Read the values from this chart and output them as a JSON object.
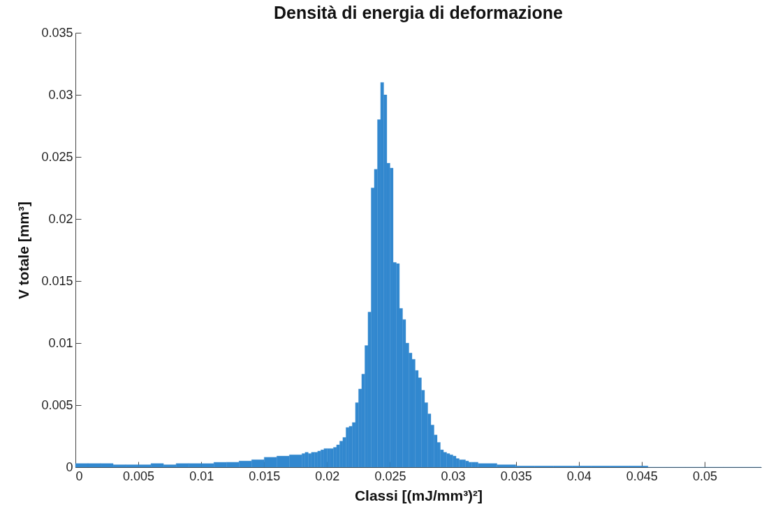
{
  "chart_data": {
    "type": "histogram",
    "title": "Densità di energia di deformazione",
    "xlabel": "Classi [(mJ/mm³)²]",
    "ylabel": "V totale [mm³]",
    "color": "#3288cf",
    "bins": [
      0,
      0.001,
      0.002,
      0.003,
      0.004,
      0.005,
      0.006,
      0.007,
      0.008,
      0.009,
      0.01,
      0.011,
      0.012,
      0.013,
      0.014,
      0.015,
      0.016,
      0.017,
      0.018,
      0.01825,
      0.0185,
      0.01875,
      0.019,
      0.01925,
      0.0195,
      0.01975,
      0.02,
      0.02025,
      0.0205,
      0.02075,
      0.021,
      0.02125,
      0.0215,
      0.02175,
      0.022,
      0.02225,
      0.0225,
      0.02275,
      0.023,
      0.02325,
      0.0235,
      0.02375,
      0.024,
      0.02425,
      0.0245,
      0.02475,
      0.025,
      0.02525,
      0.0255,
      0.02575,
      0.026,
      0.02625,
      0.0265,
      0.02675,
      0.027,
      0.02725,
      0.0275,
      0.02775,
      0.028,
      0.02825,
      0.0285,
      0.02875,
      0.029,
      0.02925,
      0.0295,
      0.02975,
      0.03,
      0.03025,
      0.0305,
      0.03075,
      0.031,
      0.03125,
      0.0315,
      0.03175,
      0.032,
      0.0335,
      0.035,
      0.0365,
      0.038,
      0.0395,
      0.041,
      0.0425,
      0.044,
      0.0455,
      0.047,
      0.0485,
      0.05,
      0.0515,
      0.053,
      0.0545
    ],
    "values": [
      0.0003,
      0.0003,
      0.0003,
      0.0002,
      0.0002,
      0.0002,
      0.0003,
      0.0002,
      0.0003,
      0.0003,
      0.0003,
      0.0004,
      0.0004,
      0.0005,
      0.0006,
      0.0008,
      0.0009,
      0.001,
      0.0011,
      0.0012,
      0.0011,
      0.0012,
      0.0012,
      0.0013,
      0.0014,
      0.0015,
      0.0015,
      0.0015,
      0.0016,
      0.0018,
      0.0021,
      0.0024,
      0.0032,
      0.0033,
      0.0036,
      0.0052,
      0.0063,
      0.0075,
      0.0098,
      0.0125,
      0.0225,
      0.024,
      0.028,
      0.031,
      0.03,
      0.0245,
      0.0241,
      0.0165,
      0.0164,
      0.0128,
      0.0119,
      0.01,
      0.0092,
      0.0087,
      0.0078,
      0.0072,
      0.0062,
      0.0052,
      0.0043,
      0.0034,
      0.0026,
      0.002,
      0.0014,
      0.0012,
      0.0011,
      0.001,
      0.0009,
      0.0007,
      0.0006,
      0.0006,
      0.0005,
      0.0004,
      0.0004,
      0.0004,
      0.0003,
      0.0002,
      0.0001,
      0.0001,
      0.0001,
      0.0001,
      0.0001,
      0.0001,
      0.0001,
      0,
      0,
      0,
      0,
      0,
      0
    ],
    "xlim": [
      0,
      0.0545
    ],
    "ylim": [
      0,
      0.035
    ],
    "xticks": [
      0,
      0.005,
      0.01,
      0.015,
      0.02,
      0.025,
      0.03,
      0.035,
      0.04,
      0.045,
      0.05
    ],
    "yticks": [
      0,
      0.005,
      0.01,
      0.015,
      0.02,
      0.025,
      0.03,
      0.035
    ],
    "grid": false
  }
}
